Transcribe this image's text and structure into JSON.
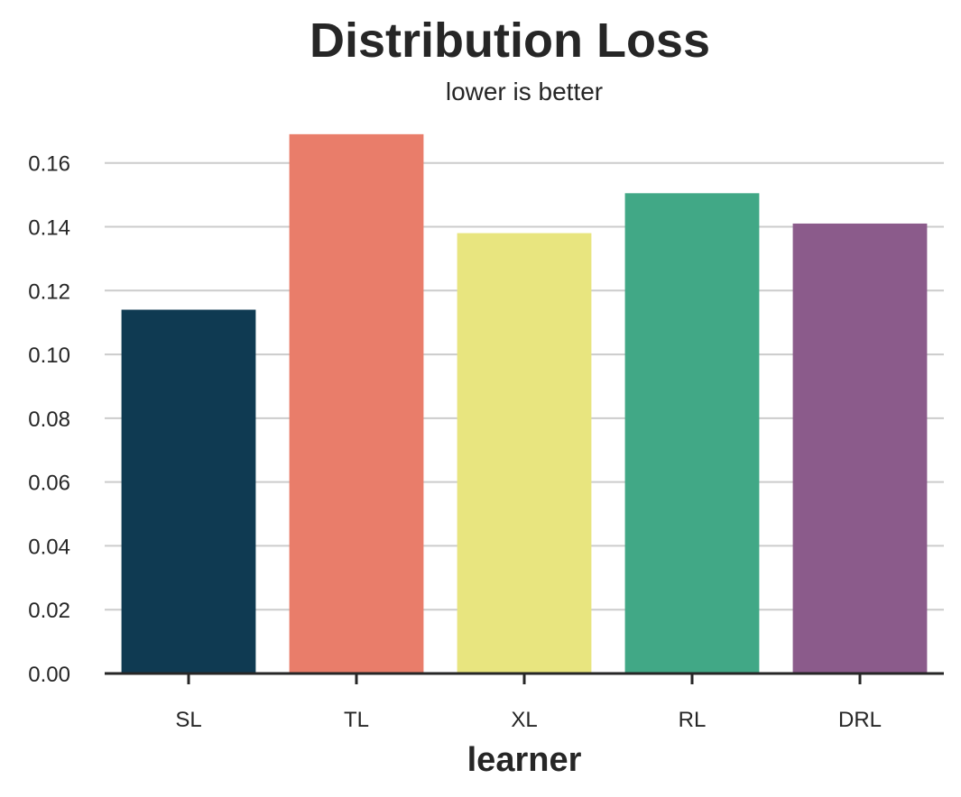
{
  "chart_data": {
    "type": "bar",
    "title": "Distribution Loss",
    "subtitle": "lower is better",
    "xlabel": "learner",
    "ylabel": "",
    "categories": [
      "SL",
      "TL",
      "XL",
      "RL",
      "DRL"
    ],
    "values": [
      0.114,
      0.169,
      0.138,
      0.1505,
      0.141
    ],
    "colors": [
      "#0f3a52",
      "#e97d6a",
      "#e8e57f",
      "#41a886",
      "#8b5b8b"
    ],
    "ylim": [
      0,
      0.1715
    ],
    "yticks": [
      0.0,
      0.02,
      0.04,
      0.06,
      0.08,
      0.1,
      0.12,
      0.14,
      0.16
    ],
    "ytick_labels": [
      "0.00",
      "0.02",
      "0.04",
      "0.06",
      "0.08",
      "0.10",
      "0.12",
      "0.14",
      "0.16"
    ],
    "grid": "horizontal",
    "legend": "none"
  }
}
